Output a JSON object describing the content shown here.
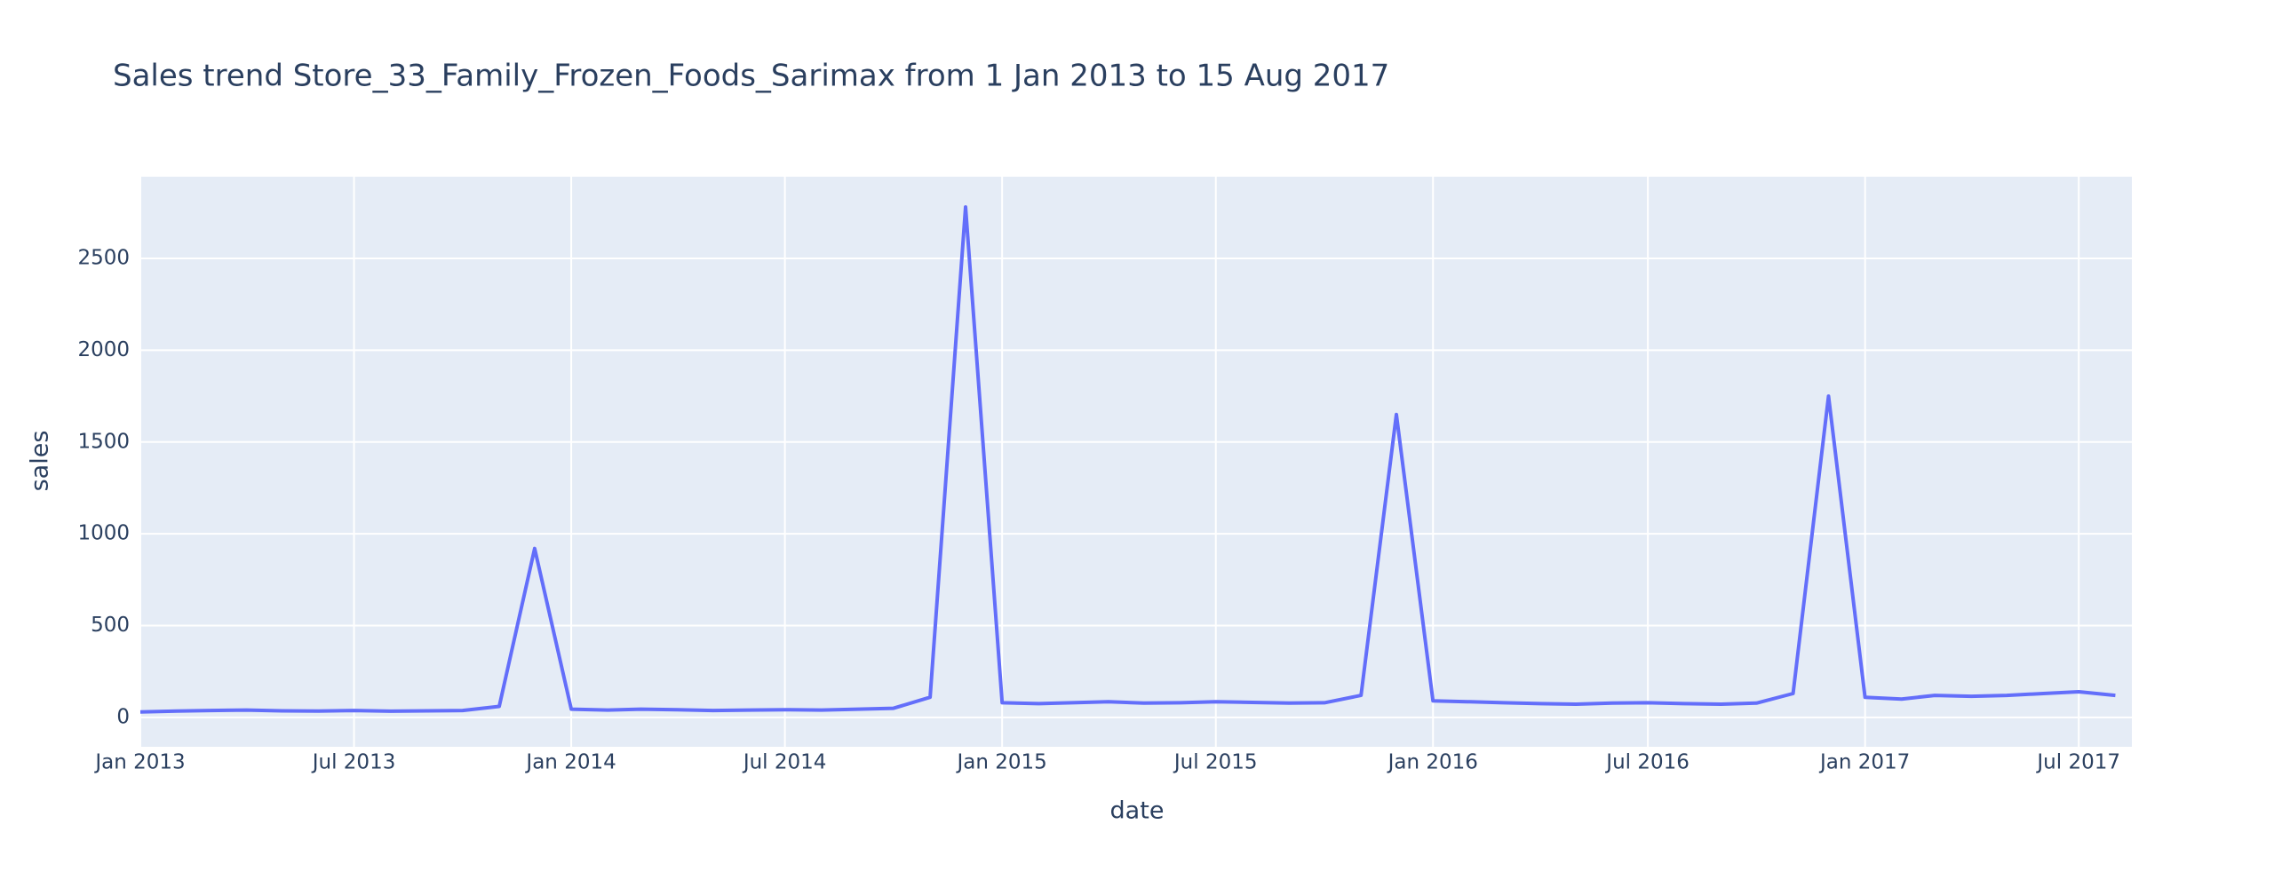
{
  "chart_data": {
    "type": "line",
    "title": "Sales trend Store_33_Family_Frozen_Foods_Sarimax from  1 Jan 2013 to 15 Aug 2017",
    "x_label": "date",
    "y_label": "sales",
    "x": [
      "2013-01",
      "2013-02",
      "2013-03",
      "2013-04",
      "2013-05",
      "2013-06",
      "2013-07",
      "2013-08",
      "2013-09",
      "2013-10",
      "2013-11",
      "2013-12",
      "2014-01",
      "2014-02",
      "2014-03",
      "2014-04",
      "2014-05",
      "2014-06",
      "2014-07",
      "2014-08",
      "2014-09",
      "2014-10",
      "2014-11",
      "2014-12",
      "2015-01",
      "2015-02",
      "2015-03",
      "2015-04",
      "2015-05",
      "2015-06",
      "2015-07",
      "2015-08",
      "2015-09",
      "2015-10",
      "2015-11",
      "2015-12",
      "2016-01",
      "2016-02",
      "2016-03",
      "2016-04",
      "2016-05",
      "2016-06",
      "2016-07",
      "2016-08",
      "2016-09",
      "2016-10",
      "2016-11",
      "2016-12",
      "2017-01",
      "2017-02",
      "2017-03",
      "2017-04",
      "2017-05",
      "2017-06",
      "2017-07",
      "2017-08"
    ],
    "series": [
      {
        "name": "sales",
        "color": "#636efa",
        "values": [
          30,
          35,
          38,
          40,
          36,
          35,
          38,
          34,
          36,
          38,
          60,
          920,
          45,
          40,
          45,
          42,
          38,
          40,
          42,
          40,
          45,
          50,
          110,
          2780,
          80,
          75,
          80,
          85,
          78,
          80,
          85,
          82,
          78,
          80,
          120,
          1650,
          90,
          85,
          80,
          75,
          72,
          78,
          80,
          75,
          72,
          78,
          130,
          1750,
          110,
          100,
          120,
          115,
          120,
          130,
          140,
          120
        ]
      }
    ],
    "xlim": [
      "2013-01-01",
      "2017-08-15"
    ],
    "xticks": [
      {
        "value": "2013-01",
        "label": "Jan 2013"
      },
      {
        "value": "2013-07",
        "label": "Jul 2013"
      },
      {
        "value": "2014-01",
        "label": "Jan 2014"
      },
      {
        "value": "2014-07",
        "label": "Jul 2014"
      },
      {
        "value": "2015-01",
        "label": "Jan 2015"
      },
      {
        "value": "2015-07",
        "label": "Jul 2015"
      },
      {
        "value": "2016-01",
        "label": "Jan 2016"
      },
      {
        "value": "2016-07",
        "label": "Jul 2016"
      },
      {
        "value": "2017-01",
        "label": "Jan 2017"
      },
      {
        "value": "2017-07",
        "label": "Jul 2017"
      }
    ],
    "ylim": [
      -160,
      2945
    ],
    "yticks": [
      0,
      500,
      1000,
      1500,
      2000,
      2500
    ],
    "grid": true
  }
}
